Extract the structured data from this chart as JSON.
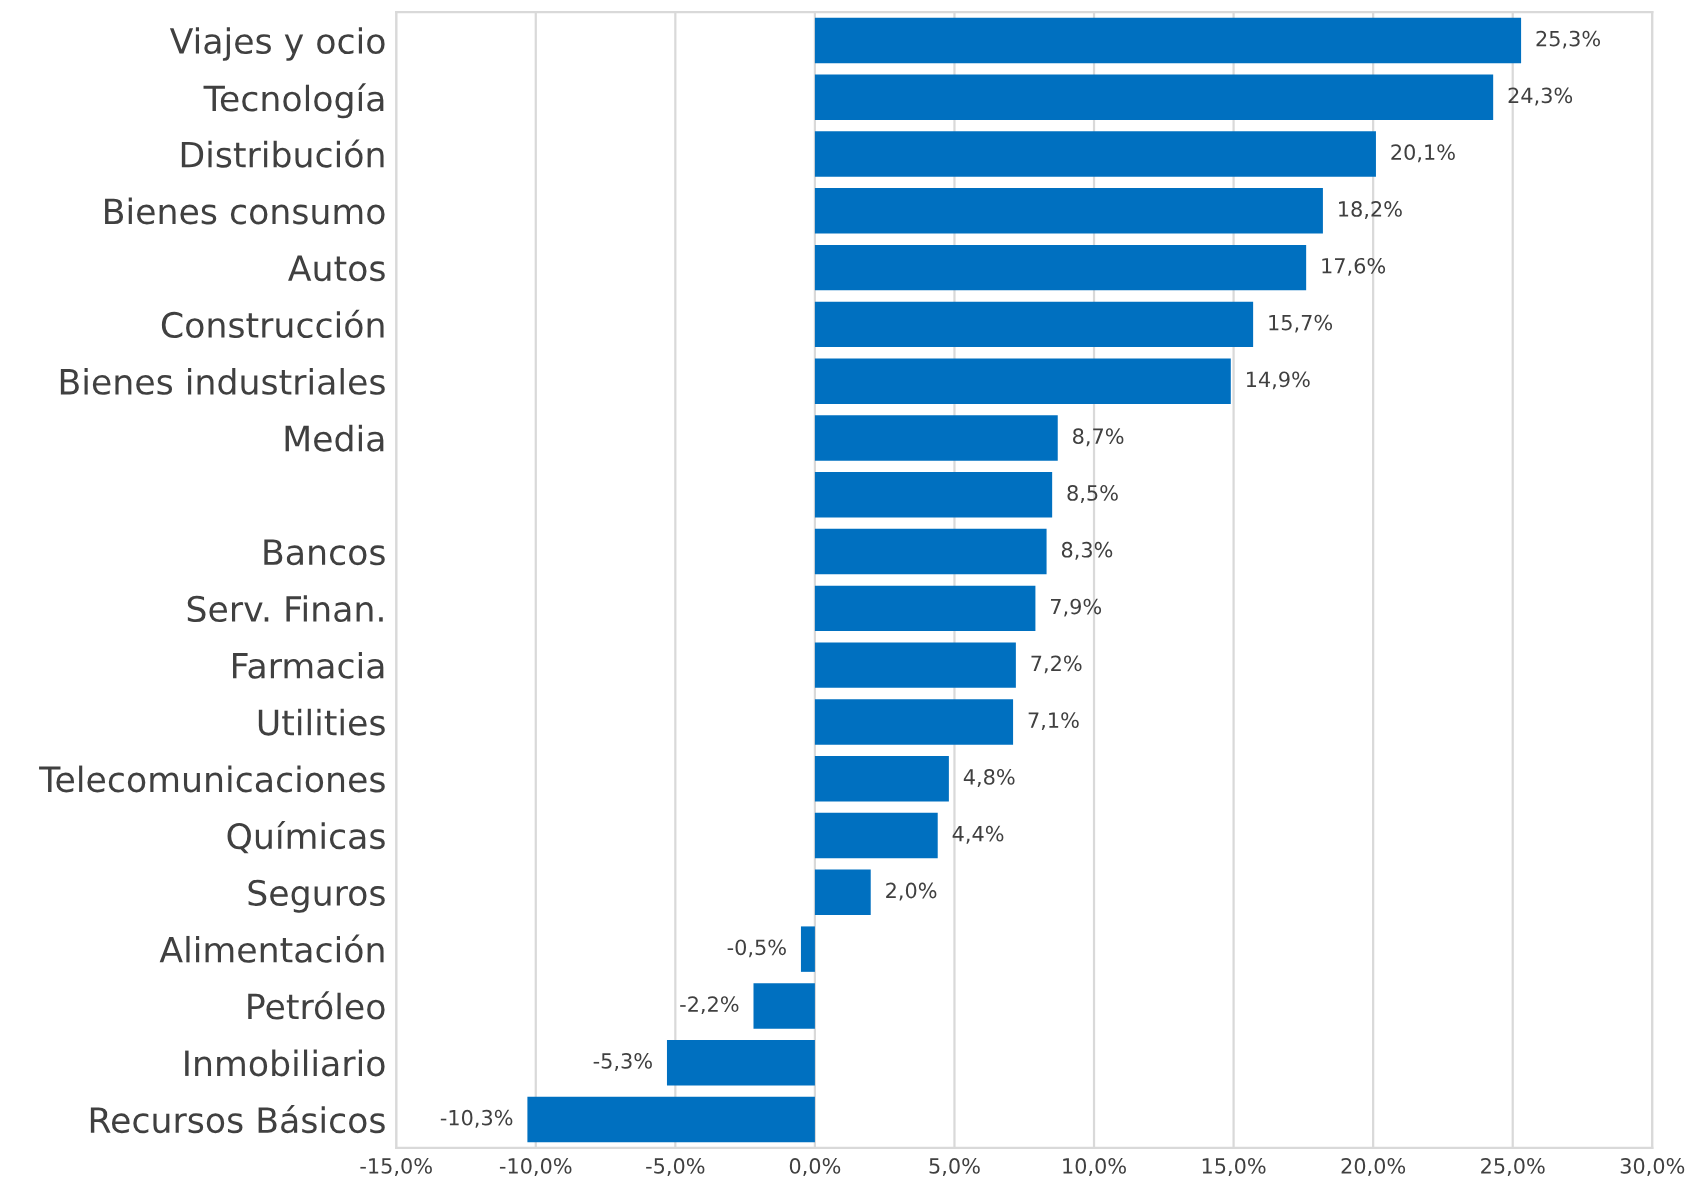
{
  "chart_data": {
    "type": "bar",
    "orientation": "horizontal",
    "categories": [
      "Viajes y ocio",
      "Tecnología",
      "Distribución",
      "Bienes consumo",
      "Autos",
      "Construcción",
      "Bienes industriales",
      "Media",
      null,
      "Bancos",
      "Serv. Finan.",
      "Farmacia",
      "Utilities",
      "Telecomunicaciones",
      "Químicas",
      "Seguros",
      "Alimentación",
      "Petróleo",
      "Inmobiliario",
      "Recursos Básicos"
    ],
    "values": [
      25.3,
      24.3,
      20.1,
      18.2,
      17.6,
      15.7,
      14.9,
      8.7,
      8.5,
      8.3,
      7.9,
      7.2,
      7.1,
      4.8,
      4.4,
      2.0,
      -0.5,
      -2.2,
      -5.3,
      -10.3
    ],
    "value_labels": [
      "25,3%",
      "24,3%",
      "20,1%",
      "18,2%",
      "17,6%",
      "15,7%",
      "14,9%",
      "8,7%",
      "8,5%",
      "8,3%",
      "7,9%",
      "7,2%",
      "7,1%",
      "4,8%",
      "4,4%",
      "2,0%",
      "-0,5%",
      "-2,2%",
      "-5,3%",
      "-10,3%"
    ],
    "color": "#0070c0",
    "xlim": [
      -15,
      30
    ],
    "xticks": [
      {
        "value": -15,
        "label": "-15,0%"
      },
      {
        "value": -10,
        "label": "-10,0%"
      },
      {
        "value": -5,
        "label": "-5,0%"
      },
      {
        "value": 0,
        "label": "0,0%"
      },
      {
        "value": 5,
        "label": "5,0%"
      },
      {
        "value": 10,
        "label": "10,0%"
      },
      {
        "value": 15,
        "label": "15,0%"
      },
      {
        "value": 20,
        "label": "20,0%"
      },
      {
        "value": 25,
        "label": "25,0%"
      },
      {
        "value": 30,
        "label": "30,0%"
      }
    ],
    "grid": "x",
    "legend": false
  }
}
